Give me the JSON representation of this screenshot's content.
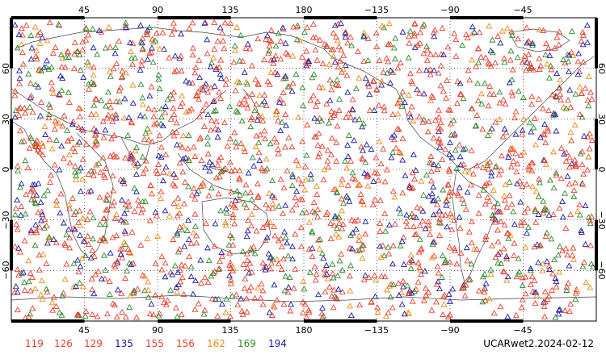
{
  "map": {
    "title": "UCARwet2.2024-02-12",
    "lon_ticks_top": [
      "45",
      "90",
      "135",
      "180",
      "−135",
      "−90",
      "−45"
    ],
    "lon_ticks_bottom": [
      "45",
      "90",
      "135",
      "180",
      "−135",
      "−90",
      "−45"
    ],
    "lat_ticks_left": [
      "60",
      "30",
      "0",
      "−30",
      "−60"
    ],
    "lat_ticks_right": [
      "60",
      "30",
      "0",
      "−30",
      "−60"
    ],
    "lon_values": [
      45,
      90,
      135,
      180,
      -135,
      -90,
      -45
    ],
    "lat_values": [
      60,
      30,
      0,
      -30,
      -60
    ],
    "lon_range": [
      0,
      360
    ],
    "lat_range": [
      -90,
      90
    ],
    "grid": "dotted",
    "marker": "open-triangle"
  },
  "legend": {
    "items": [
      {
        "label": "119",
        "color": "#e8402e"
      },
      {
        "label": "126",
        "color": "#e8402e"
      },
      {
        "label": "129",
        "color": "#e8402e"
      },
      {
        "label": "135",
        "color": "#1a1aa6"
      },
      {
        "label": "155",
        "color": "#e8402e"
      },
      {
        "label": "156",
        "color": "#e8402e"
      },
      {
        "label": "162",
        "color": "#f08a1a"
      },
      {
        "label": "169",
        "color": "#2c8a2c"
      },
      {
        "label": "194",
        "color": "#1a1aa6"
      }
    ]
  },
  "colors": {
    "red": "#e8402e",
    "blue": "#1a1aa6",
    "green": "#2c8a2c",
    "orange": "#f08a1a",
    "coast": "#444444",
    "frame": "#000000"
  }
}
